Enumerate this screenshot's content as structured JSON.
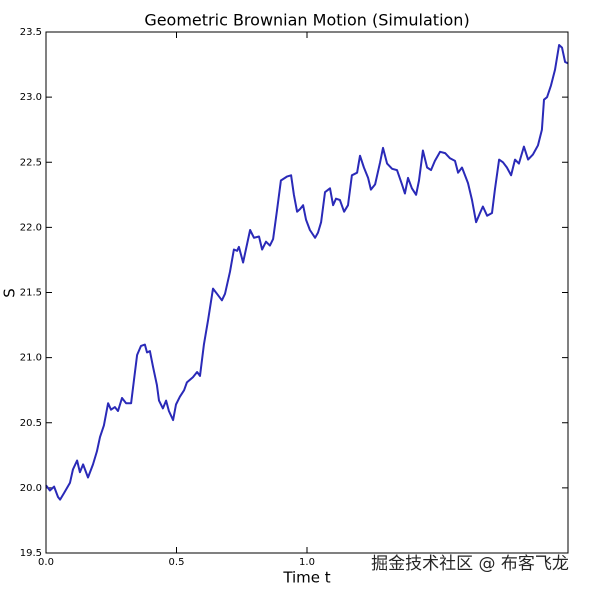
{
  "chart_data": {
    "type": "line",
    "title": "Geometric Brownian Motion (Simulation)",
    "x_label": "Time t",
    "y_label": "S",
    "watermark": "掘金技术社区 @ 布客飞龙",
    "xlim": [
      0,
      2.0
    ],
    "ylim": [
      19.5,
      23.5
    ],
    "xticks": [
      {
        "value": 0,
        "label": "0.0"
      },
      0.5,
      {
        "value": 1,
        "label": "1.0"
      }
    ],
    "yticks": [
      19.5,
      {
        "value": 20,
        "label": "20.0"
      },
      20.5,
      {
        "value": 21,
        "label": "21.0"
      },
      21.5,
      {
        "value": 22,
        "label": "22.0"
      },
      22.5,
      {
        "value": 23,
        "label": "23.0"
      },
      23.5
    ],
    "x": [
      0,
      0.015,
      0.031,
      0.046,
      0.054,
      0.069,
      0.092,
      0.103,
      0.119,
      0.13,
      0.142,
      0.161,
      0.18,
      0.195,
      0.207,
      0.222,
      0.238,
      0.249,
      0.264,
      0.276,
      0.291,
      0.307,
      0.326,
      0.337,
      0.349,
      0.364,
      0.379,
      0.387,
      0.398,
      0.41,
      0.425,
      0.433,
      0.448,
      0.46,
      0.471,
      0.487,
      0.498,
      0.513,
      0.529,
      0.54,
      0.563,
      0.579,
      0.59,
      0.605,
      0.621,
      0.64,
      0.655,
      0.674,
      0.686,
      0.705,
      0.72,
      0.732,
      0.739,
      0.755,
      0.766,
      0.782,
      0.797,
      0.816,
      0.828,
      0.843,
      0.858,
      0.87,
      0.885,
      0.9,
      0.923,
      0.939,
      0.95,
      0.962,
      0.973,
      0.985,
      0.996,
      1.011,
      1.031,
      1.042,
      1.054,
      1.069,
      1.088,
      1.1,
      1.111,
      1.126,
      1.142,
      1.157,
      1.172,
      1.192,
      1.203,
      1.218,
      1.234,
      1.245,
      1.261,
      1.28,
      1.291,
      1.307,
      1.326,
      1.345,
      1.364,
      1.375,
      1.387,
      1.402,
      1.418,
      1.429,
      1.444,
      1.46,
      1.475,
      1.49,
      1.51,
      1.529,
      1.548,
      1.567,
      1.579,
      1.594,
      1.617,
      1.632,
      1.648,
      1.663,
      1.674,
      1.69,
      1.709,
      1.72,
      1.736,
      1.751,
      1.766,
      1.782,
      1.797,
      1.812,
      1.831,
      1.847,
      1.866,
      1.885,
      1.9,
      1.908,
      1.92,
      1.935,
      1.95,
      1.966,
      1.977,
      1.989,
      2.0
    ],
    "series": [
      {
        "color": "#2a2ab8",
        "values": [
          20.02,
          19.98,
          20.01,
          19.93,
          19.91,
          19.96,
          20.04,
          20.14,
          20.21,
          20.12,
          20.18,
          20.08,
          20.18,
          20.28,
          20.39,
          20.48,
          20.65,
          20.6,
          20.62,
          20.59,
          20.69,
          20.65,
          20.65,
          20.83,
          21.02,
          21.09,
          21.1,
          21.04,
          21.05,
          20.93,
          20.79,
          20.67,
          20.61,
          20.67,
          20.59,
          20.52,
          20.64,
          20.7,
          20.75,
          20.81,
          20.85,
          20.89,
          20.86,
          21.1,
          21.29,
          21.53,
          21.49,
          21.44,
          21.49,
          21.66,
          21.83,
          21.82,
          21.85,
          21.73,
          21.83,
          21.98,
          21.92,
          21.93,
          21.83,
          21.89,
          21.86,
          21.91,
          22.13,
          22.36,
          22.39,
          22.4,
          22.25,
          22.12,
          22.14,
          22.17,
          22.06,
          21.98,
          21.92,
          21.96,
          22.04,
          22.27,
          22.3,
          22.17,
          22.22,
          22.21,
          22.12,
          22.17,
          22.4,
          22.42,
          22.55,
          22.46,
          22.38,
          22.29,
          22.33,
          22.5,
          22.61,
          22.49,
          22.45,
          22.44,
          22.33,
          22.26,
          22.38,
          22.3,
          22.25,
          22.36,
          22.59,
          22.46,
          22.44,
          22.51,
          22.58,
          22.57,
          22.53,
          22.51,
          22.42,
          22.46,
          22.34,
          22.21,
          22.04,
          22.11,
          22.16,
          22.09,
          22.11,
          22.29,
          22.52,
          22.5,
          22.46,
          22.4,
          22.52,
          22.49,
          22.62,
          22.52,
          22.56,
          22.63,
          22.75,
          22.98,
          23.0,
          23.09,
          23.21,
          23.4,
          23.38,
          23.27,
          23.26
        ]
      }
    ]
  }
}
